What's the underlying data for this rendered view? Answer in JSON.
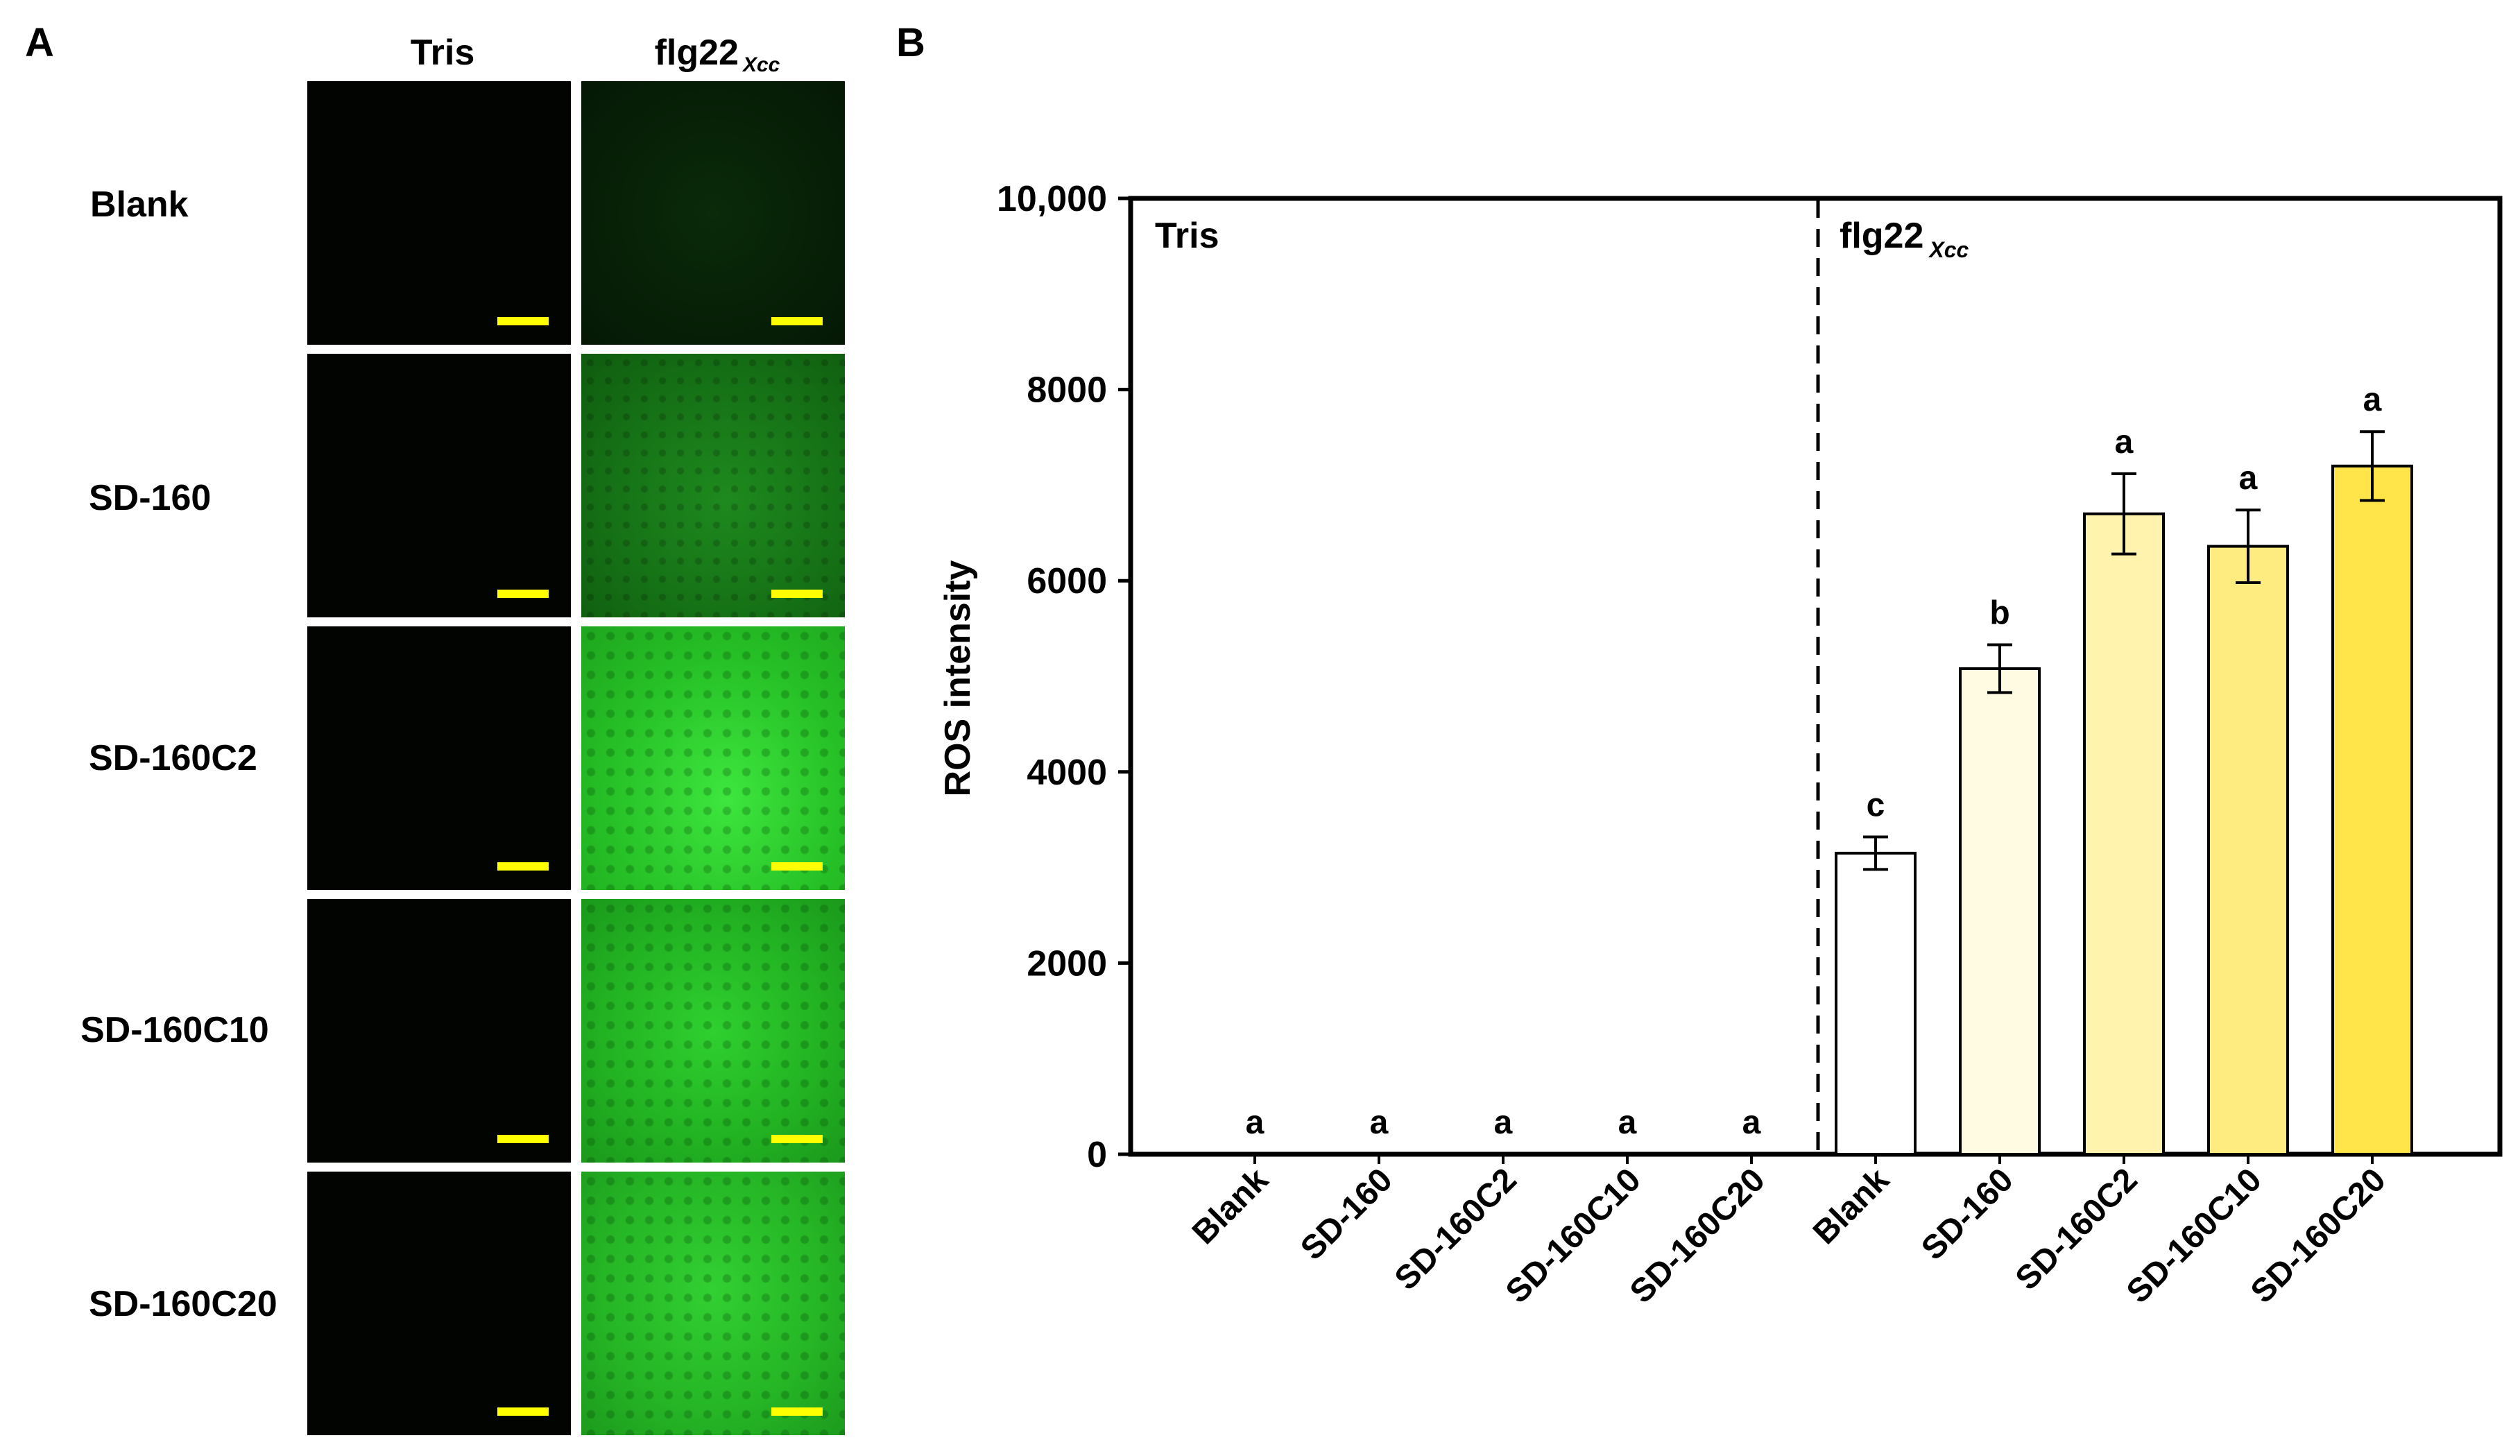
{
  "panel_a": {
    "letter": "A",
    "col_tris": "Tris",
    "col_flg": "flg22",
    "col_flg_sub": "Xcc",
    "rows": [
      "Blank",
      "SD-160",
      "SD-160C2",
      "SD-160C10",
      "SD-160C20"
    ]
  },
  "panel_b": {
    "letter": "B"
  },
  "chart_data": {
    "type": "bar",
    "ylabel": "ROS intensity",
    "xlabel": "",
    "ylim": [
      0,
      10000
    ],
    "yticks": [
      0,
      2000,
      4000,
      6000,
      8000,
      10000
    ],
    "ytick_labels": [
      "0",
      "2000",
      "4000",
      "6000",
      "8000",
      "10,000"
    ],
    "categories": [
      "Blank",
      "SD-160",
      "SD-160C2",
      "SD-160C10",
      "SD-160C20",
      "Blank",
      "SD-160",
      "SD-160C2",
      "SD-160C10",
      "SD-160C20"
    ],
    "groups": [
      {
        "label": "Tris",
        "label_sub": "",
        "indices": [
          0,
          1,
          2,
          3,
          4
        ]
      },
      {
        "label": "flg22",
        "label_sub": "Xcc",
        "indices": [
          5,
          6,
          7,
          8,
          9
        ]
      }
    ],
    "values": [
      0,
      0,
      0,
      0,
      0,
      3150,
      5080,
      6700,
      6360,
      7200
    ],
    "errors": [
      0,
      0,
      0,
      0,
      0,
      170,
      250,
      420,
      380,
      360
    ],
    "letters": [
      "a",
      "a",
      "a",
      "a",
      "a",
      "c",
      "b",
      "a",
      "a",
      "a"
    ],
    "bar_colors": [
      "#ffffff",
      "#ffffff",
      "#ffffff",
      "#ffffff",
      "#ffffff",
      "#ffffff",
      "#fffbe3",
      "#fff3ae",
      "#ffec80",
      "#ffe44a"
    ]
  }
}
